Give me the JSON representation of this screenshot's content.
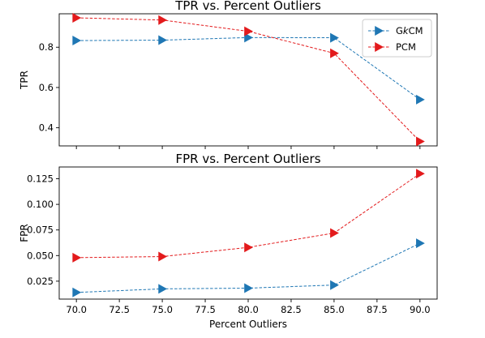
{
  "chart_data": [
    {
      "type": "line",
      "title": "TPR vs. Percent Outliers",
      "xlabel": "",
      "ylabel": "TPR",
      "x": [
        70,
        75,
        80,
        85,
        90
      ],
      "xlim": [
        69,
        91
      ],
      "ylim": [
        0.31,
        0.966
      ],
      "yticks": [
        0.4,
        0.6,
        0.8
      ],
      "ytick_labels": [
        "0.4",
        "0.6",
        "0.8"
      ],
      "series": [
        {
          "name": "GkCM",
          "color": "#1f77b4",
          "values": [
            0.833,
            0.835,
            0.848,
            0.847,
            0.54
          ]
        },
        {
          "name": "PCM",
          "color": "#e31a1c",
          "values": [
            0.946,
            0.935,
            0.879,
            0.77,
            0.332
          ]
        }
      ],
      "legend": {
        "position": "top-right",
        "name_parts": [
          [
            "G",
            "k",
            "CM"
          ],
          [
            "PCM"
          ]
        ]
      },
      "grid": false
    },
    {
      "type": "line",
      "title": "FPR vs. Percent Outliers",
      "xlabel": "Percent Outliers",
      "ylabel": "FPR",
      "x": [
        70,
        75,
        80,
        85,
        90
      ],
      "xlim": [
        69,
        91
      ],
      "ylim": [
        0.0075,
        0.1365
      ],
      "yticks": [
        0.025,
        0.05,
        0.075,
        0.1,
        0.125
      ],
      "ytick_labels": [
        "0.025",
        "0.050",
        "0.075",
        "0.100",
        "0.125"
      ],
      "xticks": [
        70,
        72.5,
        75,
        77.5,
        80,
        82.5,
        85,
        87.5,
        90
      ],
      "xtick_labels": [
        "70.0",
        "72.5",
        "75.0",
        "77.5",
        "80.0",
        "82.5",
        "85.0",
        "87.5",
        "90.0"
      ],
      "series": [
        {
          "name": "GkCM",
          "color": "#1f77b4",
          "values": [
            0.014,
            0.0175,
            0.0182,
            0.0212,
            0.062
          ]
        },
        {
          "name": "PCM",
          "color": "#e31a1c",
          "values": [
            0.048,
            0.049,
            0.058,
            0.072,
            0.13
          ]
        }
      ],
      "grid": false
    }
  ]
}
